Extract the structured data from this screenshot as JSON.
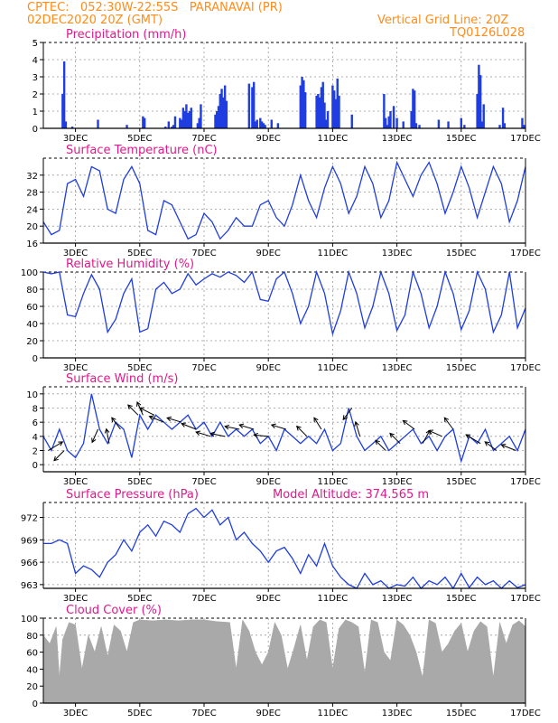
{
  "header": {
    "line1": "CPTEC:   052:30W-22:55S   PARANAVAI (PR)",
    "line2": "02DEC2020 20Z (GMT)",
    "right1": "Vertical Grid Line: 20Z",
    "right2": "TQ0126L028"
  },
  "x_ticks": [
    "3DEC",
    "5DEC",
    "7DEC",
    "9DEC",
    "11DEC",
    "13DEC",
    "15DEC",
    "17DEC"
  ],
  "model_altitude": "Model Altitude: 374.565 m",
  "chart_data": [
    {
      "type": "bar",
      "title": "Precipitation (mm/h)",
      "ylim": [
        0,
        5
      ],
      "yticks": [
        "0",
        "1",
        "2",
        "3",
        "4",
        "5"
      ],
      "grid": true,
      "x_range_days": [
        2.0,
        17.0
      ],
      "series": [
        {
          "x": [
            2.6,
            2.65,
            2.7,
            2.9,
            3.7,
            4.6,
            5.1,
            5.15,
            5.8,
            5.9,
            6.0,
            6.05,
            6.1,
            6.25,
            6.3,
            6.35,
            6.4,
            6.45,
            6.5,
            6.55,
            6.6,
            6.8,
            6.85,
            6.9,
            7.35,
            7.4,
            7.45,
            7.5,
            7.55,
            7.6,
            7.65,
            7.7,
            8.4,
            8.5,
            8.55,
            8.6,
            8.65,
            8.75,
            8.8,
            8.85,
            8.9,
            9.1,
            9.3,
            10.0,
            10.05,
            10.1,
            10.15,
            10.5,
            10.55,
            10.6,
            10.65,
            10.7,
            10.75,
            10.8,
            10.85,
            11.0,
            11.05,
            11.1,
            11.15,
            11.2,
            11.6,
            12.6,
            12.65,
            12.7,
            12.75,
            12.8,
            12.9,
            13.0,
            13.2,
            13.45,
            13.5,
            13.55,
            13.6,
            13.7,
            14.3,
            14.6,
            15.0,
            15.1,
            15.5,
            15.55,
            15.6,
            15.65,
            15.7,
            16.2,
            16.3,
            16.35,
            16.9,
            16.95
          ],
          "values": [
            2.0,
            3.9,
            0.4,
            0.1,
            0.5,
            0.2,
            0.7,
            0.6,
            0.1,
            0.4,
            0.1,
            0.2,
            0.7,
            0.6,
            0.5,
            1.2,
            1.0,
            1.4,
            0.9,
            1.0,
            1.2,
            0.3,
            0.6,
            1.4,
            0.8,
            1.0,
            1.3,
            2.0,
            2.3,
            1.8,
            2.5,
            1.6,
            2.6,
            2.4,
            2.7,
            0.4,
            0.5,
            0.6,
            0.4,
            0.3,
            0.2,
            0.5,
            0.3,
            2.5,
            3.0,
            2.8,
            2.1,
            1.9,
            2.0,
            1.8,
            2.4,
            2.7,
            1.5,
            0.5,
            1.0,
            2.5,
            2.2,
            1.7,
            2.9,
            1.9,
            0.8,
            2.0,
            0.6,
            0.2,
            0.7,
            1.0,
            1.3,
            0.6,
            0.4,
            1.0,
            2.3,
            2.2,
            0.3,
            0.2,
            0.5,
            0.4,
            0.6,
            0.2,
            2.0,
            3.7,
            3.1,
            0.4,
            1.4,
            0.2,
            1.2,
            0.3,
            0.6,
            0.2
          ]
        }
      ]
    },
    {
      "type": "line",
      "title": "Surface Temperature (nC)",
      "ylim": [
        16,
        36
      ],
      "yticks": [
        "16",
        "20",
        "24",
        "28",
        "32"
      ],
      "grid": true,
      "series": [
        {
          "x": [
            2.0,
            2.25,
            2.5,
            2.75,
            3.0,
            3.25,
            3.5,
            3.75,
            4.0,
            4.25,
            4.5,
            4.75,
            5.0,
            5.25,
            5.5,
            5.75,
            6.0,
            6.25,
            6.5,
            6.75,
            7.0,
            7.25,
            7.5,
            7.75,
            8.0,
            8.25,
            8.5,
            8.75,
            9.0,
            9.25,
            9.5,
            9.75,
            10.0,
            10.25,
            10.5,
            10.75,
            11.0,
            11.25,
            11.5,
            11.75,
            12.0,
            12.25,
            12.5,
            12.75,
            13.0,
            13.25,
            13.5,
            13.75,
            14.0,
            14.25,
            14.5,
            14.75,
            15.0,
            15.25,
            15.5,
            15.75,
            16.0,
            16.25,
            16.5,
            16.75,
            17.0
          ],
          "values": [
            21,
            18,
            19,
            30,
            31,
            27,
            34,
            33,
            24,
            23,
            31,
            34,
            30,
            19,
            18,
            26,
            25,
            21,
            17,
            18,
            23,
            21,
            17,
            19,
            22,
            20,
            20,
            25,
            26,
            22,
            20,
            25,
            32,
            26,
            22,
            29,
            34,
            30,
            23,
            27,
            34,
            30,
            22,
            26,
            35,
            31,
            27,
            32,
            35,
            30,
            23,
            28,
            34,
            29,
            22,
            28,
            34,
            30,
            21,
            26,
            34
          ]
        }
      ]
    },
    {
      "type": "line",
      "title": "Relative Humidity (%)",
      "ylim": [
        0,
        100
      ],
      "yticks": [
        "0",
        "20",
        "40",
        "60",
        "80",
        "100"
      ],
      "grid": true,
      "series": [
        {
          "x": [
            2.0,
            2.25,
            2.5,
            2.75,
            3.0,
            3.25,
            3.5,
            3.75,
            4.0,
            4.25,
            4.5,
            4.75,
            5.0,
            5.25,
            5.5,
            5.75,
            6.0,
            6.25,
            6.5,
            6.75,
            7.0,
            7.25,
            7.5,
            7.75,
            8.0,
            8.25,
            8.5,
            8.75,
            9.0,
            9.25,
            9.5,
            9.75,
            10.0,
            10.25,
            10.5,
            10.75,
            11.0,
            11.25,
            11.5,
            11.75,
            12.0,
            12.25,
            12.5,
            12.75,
            13.0,
            13.25,
            13.5,
            13.75,
            14.0,
            14.25,
            14.5,
            14.75,
            15.0,
            15.25,
            15.5,
            15.75,
            16.0,
            16.25,
            16.5,
            16.75,
            17.0
          ],
          "values": [
            100,
            98,
            100,
            50,
            48,
            75,
            97,
            80,
            30,
            45,
            75,
            92,
            30,
            34,
            80,
            88,
            75,
            80,
            98,
            85,
            92,
            98,
            94,
            100,
            96,
            88,
            100,
            68,
            66,
            92,
            100,
            75,
            40,
            60,
            100,
            75,
            28,
            55,
            100,
            75,
            35,
            60,
            100,
            75,
            32,
            50,
            100,
            75,
            35,
            60,
            100,
            75,
            33,
            55,
            100,
            80,
            30,
            50,
            100,
            35,
            58
          ]
        }
      ]
    },
    {
      "type": "line",
      "title": "Surface Wind (m/s)",
      "ylim": [
        -1,
        11
      ],
      "yticks": [
        "0",
        "2",
        "4",
        "6",
        "8",
        "10"
      ],
      "grid": true,
      "series": [
        {
          "x": [
            2.0,
            2.25,
            2.5,
            2.75,
            3.0,
            3.25,
            3.5,
            3.75,
            4.0,
            4.25,
            4.5,
            4.75,
            5.0,
            5.25,
            5.5,
            5.75,
            6.0,
            6.25,
            6.5,
            6.75,
            7.0,
            7.25,
            7.5,
            7.75,
            8.0,
            8.25,
            8.5,
            8.75,
            9.0,
            9.25,
            9.5,
            9.75,
            10.0,
            10.25,
            10.5,
            10.75,
            11.0,
            11.25,
            11.5,
            11.75,
            12.0,
            12.25,
            12.5,
            12.75,
            13.0,
            13.25,
            13.5,
            13.75,
            14.0,
            14.25,
            14.5,
            14.75,
            15.0,
            15.25,
            15.5,
            15.75,
            16.0,
            16.25,
            16.5,
            16.75,
            17.0
          ],
          "values": [
            4,
            2,
            5,
            2,
            1,
            3,
            10,
            5,
            3,
            6,
            5,
            1,
            7,
            5,
            7,
            6,
            5,
            6,
            7,
            5,
            6,
            4,
            6,
            4,
            5,
            4,
            5,
            3,
            4,
            2,
            5,
            4,
            3,
            4,
            3,
            5,
            2,
            3,
            8,
            4,
            2,
            3,
            4,
            2,
            3,
            4,
            5,
            3,
            4,
            2,
            4,
            5,
            0.5,
            4,
            3,
            5,
            2,
            3,
            4,
            2,
            5
          ]
        }
      ],
      "wind_arrows": [
        {
          "x": 2.15,
          "dx": 1,
          "dy": 0.6
        },
        {
          "x": 2.65,
          "dx": -0.7,
          "dy": -0.7
        },
        {
          "x": 3.7,
          "dx": -0.4,
          "dy": -0.9
        },
        {
          "x": 4.05,
          "dx": -0.2,
          "dy": 1
        },
        {
          "x": 4.4,
          "dx": -0.6,
          "dy": 0.8
        },
        {
          "x": 4.95,
          "dx": -0.7,
          "dy": 0.7
        },
        {
          "x": 5.1,
          "dx": -0.4,
          "dy": 0.9
        },
        {
          "x": 5.45,
          "dx": -1,
          "dy": 0.5
        },
        {
          "x": 5.75,
          "dx": -1,
          "dy": 0.4
        },
        {
          "x": 6.3,
          "dx": -1,
          "dy": 0.3
        },
        {
          "x": 6.75,
          "dx": -1,
          "dy": 0.4
        },
        {
          "x": 7.2,
          "dx": -1,
          "dy": 0.3
        },
        {
          "x": 7.65,
          "dx": -1,
          "dy": 0.2
        },
        {
          "x": 8.1,
          "dx": -1,
          "dy": 0.2
        },
        {
          "x": 8.55,
          "dx": -1,
          "dy": 0.3
        },
        {
          "x": 9.0,
          "dx": -1,
          "dy": 0.1
        },
        {
          "x": 9.55,
          "dx": -1,
          "dy": 0.3
        },
        {
          "x": 10.2,
          "dx": -0.7,
          "dy": 0.7
        },
        {
          "x": 10.65,
          "dx": -0.5,
          "dy": 0.8
        },
        {
          "x": 11.6,
          "dx": -0.6,
          "dy": -0.8
        },
        {
          "x": 11.85,
          "dx": -0.3,
          "dy": 1
        },
        {
          "x": 12.65,
          "dx": -0.7,
          "dy": 0.7
        },
        {
          "x": 13.1,
          "dx": -0.7,
          "dy": 0.7
        },
        {
          "x": 13.55,
          "dx": -0.8,
          "dy": 0.6
        },
        {
          "x": 13.8,
          "dx": 0.5,
          "dy": 0.9
        },
        {
          "x": 14.4,
          "dx": -0.9,
          "dy": 0.4
        },
        {
          "x": 14.75,
          "dx": -0.6,
          "dy": 0.8
        },
        {
          "x": 15.6,
          "dx": -1,
          "dy": 0.6
        },
        {
          "x": 16.1,
          "dx": -0.8,
          "dy": 0.6
        },
        {
          "x": 16.7,
          "dx": -1,
          "dy": 0.4
        }
      ]
    },
    {
      "type": "line",
      "title": "Surface Pressure (hPa)",
      "ylim": [
        962.5,
        974
      ],
      "yticks": [
        "963",
        "966",
        "969",
        "972"
      ],
      "grid": true,
      "series": [
        {
          "x": [
            2.0,
            2.25,
            2.5,
            2.75,
            3.0,
            3.25,
            3.5,
            3.75,
            4.0,
            4.25,
            4.5,
            4.75,
            5.0,
            5.25,
            5.5,
            5.75,
            6.0,
            6.25,
            6.5,
            6.75,
            7.0,
            7.25,
            7.5,
            7.75,
            8.0,
            8.25,
            8.5,
            8.75,
            9.0,
            9.25,
            9.5,
            9.75,
            10.0,
            10.25,
            10.5,
            10.75,
            11.0,
            11.25,
            11.5,
            11.75,
            12.0,
            12.25,
            12.5,
            12.75,
            13.0,
            13.25,
            13.5,
            13.75,
            14.0,
            14.25,
            14.5,
            14.75,
            15.0,
            15.25,
            15.5,
            15.75,
            16.0,
            16.25,
            16.5,
            16.75,
            17.0
          ],
          "values": [
            968.5,
            968.5,
            969.0,
            968.5,
            964.5,
            965.5,
            965.0,
            964.0,
            966.0,
            967.0,
            969.0,
            967.5,
            970.0,
            971.0,
            969.5,
            971.5,
            971.0,
            970.0,
            972.5,
            973.2,
            972.0,
            973.0,
            971.0,
            972.0,
            969.0,
            970.0,
            968.5,
            967.5,
            966.0,
            967.5,
            968.0,
            966.5,
            964.5,
            967.0,
            965.5,
            968.5,
            965.5,
            964.0,
            963.0,
            962.5,
            964.5,
            963.0,
            963.5,
            962.5,
            963.0,
            962.8,
            964.0,
            962.5,
            963.5,
            963.0,
            964.0,
            962.5,
            964.5,
            962.6,
            964.0,
            963.0,
            963.5,
            962.5,
            963.5,
            962.6,
            963.0
          ]
        }
      ]
    },
    {
      "type": "area",
      "title": "Cloud Cover (%)",
      "ylim": [
        0,
        100
      ],
      "yticks": [
        "0",
        "20",
        "40",
        "60",
        "80",
        "100"
      ],
      "grid": true,
      "series": [
        {
          "x": [
            2.0,
            2.2,
            2.4,
            2.5,
            2.6,
            2.8,
            3.0,
            3.2,
            3.4,
            3.6,
            3.8,
            4.0,
            4.2,
            4.4,
            4.6,
            4.8,
            5.0,
            5.4,
            5.8,
            6.2,
            6.6,
            7.0,
            7.4,
            7.8,
            8.0,
            8.2,
            8.4,
            8.6,
            8.8,
            9.0,
            9.2,
            9.4,
            9.6,
            9.8,
            10.0,
            10.2,
            10.4,
            10.6,
            10.8,
            11.0,
            11.2,
            11.4,
            11.6,
            11.8,
            12.0,
            12.2,
            12.4,
            12.6,
            12.8,
            13.0,
            13.2,
            13.4,
            13.6,
            13.8,
            14.0,
            14.2,
            14.4,
            14.6,
            14.8,
            15.0,
            15.2,
            15.4,
            15.6,
            15.8,
            16.0,
            16.2,
            16.4,
            16.6,
            16.8,
            17.0
          ],
          "values": [
            80,
            70,
            90,
            30,
            75,
            95,
            92,
            40,
            80,
            60,
            90,
            55,
            92,
            85,
            60,
            95,
            98,
            97,
            98,
            97,
            98,
            98,
            96,
            95,
            40,
            98,
            85,
            60,
            45,
            60,
            95,
            80,
            40,
            65,
            92,
            50,
            90,
            98,
            95,
            40,
            88,
            98,
            95,
            90,
            35,
            98,
            95,
            60,
            50,
            98,
            92,
            80,
            60,
            30,
            98,
            94,
            60,
            70,
            85,
            94,
            60,
            85,
            96,
            90,
            30,
            95,
            70,
            92,
            97,
            90
          ]
        }
      ]
    }
  ]
}
